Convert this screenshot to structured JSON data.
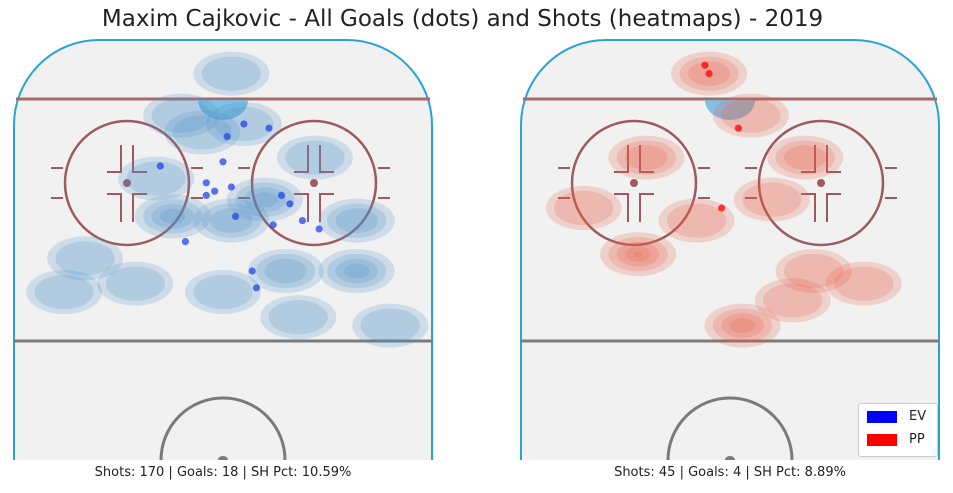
{
  "chart_data": [
    {
      "type": "scatter",
      "panel": "left",
      "title": "Maxim Cajkovic - All Goals (dots) and Shots (heatmaps) - 2019",
      "caption": "Shots: 170 | Goals: 18 | SH Pct: 10.59%",
      "shots": 170,
      "goals": 18,
      "sh_pct": 10.59,
      "xlim": [
        0,
        100
      ],
      "ylim": [
        0,
        100
      ],
      "heat_color": "#4f93c9",
      "goal_color": "#2146e8",
      "goals_xy": [
        {
          "x": 55,
          "y": 80,
          "sit": "EV"
        },
        {
          "x": 61,
          "y": 79,
          "sit": "EV"
        },
        {
          "x": 51,
          "y": 77,
          "sit": "EV"
        },
        {
          "x": 35,
          "y": 70,
          "sit": "EV"
        },
        {
          "x": 50,
          "y": 71,
          "sit": "EV"
        },
        {
          "x": 46,
          "y": 66,
          "sit": "EV"
        },
        {
          "x": 52,
          "y": 65,
          "sit": "EV"
        },
        {
          "x": 48,
          "y": 64,
          "sit": "EV"
        },
        {
          "x": 46,
          "y": 63,
          "sit": "EV"
        },
        {
          "x": 64,
          "y": 63,
          "sit": "EV"
        },
        {
          "x": 66,
          "y": 61,
          "sit": "EV"
        },
        {
          "x": 53,
          "y": 58,
          "sit": "EV"
        },
        {
          "x": 69,
          "y": 57,
          "sit": "EV"
        },
        {
          "x": 62,
          "y": 56,
          "sit": "EV"
        },
        {
          "x": 73,
          "y": 55,
          "sit": "EV"
        },
        {
          "x": 41,
          "y": 52,
          "sit": "EV"
        },
        {
          "x": 57,
          "y": 45,
          "sit": "EV"
        },
        {
          "x": 58,
          "y": 41,
          "sit": "EV"
        }
      ],
      "heat_centers": [
        {
          "x": 38,
          "y": 58,
          "w": 3
        },
        {
          "x": 60,
          "y": 62,
          "w": 3
        },
        {
          "x": 82,
          "y": 45,
          "w": 3
        },
        {
          "x": 52,
          "y": 57,
          "w": 2
        },
        {
          "x": 65,
          "y": 45,
          "w": 2
        },
        {
          "x": 82,
          "y": 57,
          "w": 2
        },
        {
          "x": 29,
          "y": 42,
          "w": 1
        },
        {
          "x": 55,
          "y": 80,
          "w": 1
        },
        {
          "x": 40,
          "y": 82,
          "w": 1
        },
        {
          "x": 34,
          "y": 67,
          "w": 1
        },
        {
          "x": 45,
          "y": 78,
          "w": 1
        },
        {
          "x": 72,
          "y": 72,
          "w": 1
        },
        {
          "x": 52,
          "y": 92,
          "w": 1
        },
        {
          "x": 17,
          "y": 48,
          "w": 1
        },
        {
          "x": 68,
          "y": 34,
          "w": 1
        },
        {
          "x": 50,
          "y": 40,
          "w": 1
        },
        {
          "x": 90,
          "y": 32,
          "w": 1
        },
        {
          "x": 12,
          "y": 40,
          "w": 1
        }
      ]
    },
    {
      "type": "scatter",
      "panel": "right",
      "caption": "Shots: 45 | Goals: 4 | SH Pct: 8.89%",
      "shots": 45,
      "goals": 4,
      "sh_pct": 8.89,
      "xlim": [
        0,
        100
      ],
      "ylim": [
        0,
        100
      ],
      "heat_color": "#e8604a",
      "goal_color": "#ff0000",
      "goals_xy": [
        {
          "x": 44,
          "y": 94,
          "sit": "PP"
        },
        {
          "x": 45,
          "y": 92,
          "sit": "PP"
        },
        {
          "x": 52,
          "y": 79,
          "sit": "PP"
        },
        {
          "x": 48,
          "y": 60,
          "sit": "PP"
        }
      ],
      "heat_centers": [
        {
          "x": 28,
          "y": 49,
          "w": 4
        },
        {
          "x": 53,
          "y": 32,
          "w": 3
        },
        {
          "x": 30,
          "y": 72,
          "w": 2
        },
        {
          "x": 45,
          "y": 92,
          "w": 2
        },
        {
          "x": 68,
          "y": 72,
          "w": 2
        },
        {
          "x": 42,
          "y": 57,
          "w": 1
        },
        {
          "x": 15,
          "y": 60,
          "w": 1
        },
        {
          "x": 70,
          "y": 45,
          "w": 1
        },
        {
          "x": 55,
          "y": 82,
          "w": 1
        },
        {
          "x": 82,
          "y": 42,
          "w": 1
        },
        {
          "x": 60,
          "y": 62,
          "w": 1
        },
        {
          "x": 65,
          "y": 38,
          "w": 1
        }
      ]
    }
  ],
  "legend": {
    "placement": "lower-right",
    "items": [
      {
        "label": "EV",
        "color": "#0000ff"
      },
      {
        "label": "PP",
        "color": "#ff0000"
      }
    ]
  },
  "rink_colors": {
    "board": "#2aa3d4",
    "goal_line": "#a8696b",
    "circle": "#9e5a5e",
    "blue_line": "#7a7a7a",
    "crease": "#e89c8e",
    "ice": "#f1f1f1",
    "net_highlight": "#6fb8e0"
  }
}
